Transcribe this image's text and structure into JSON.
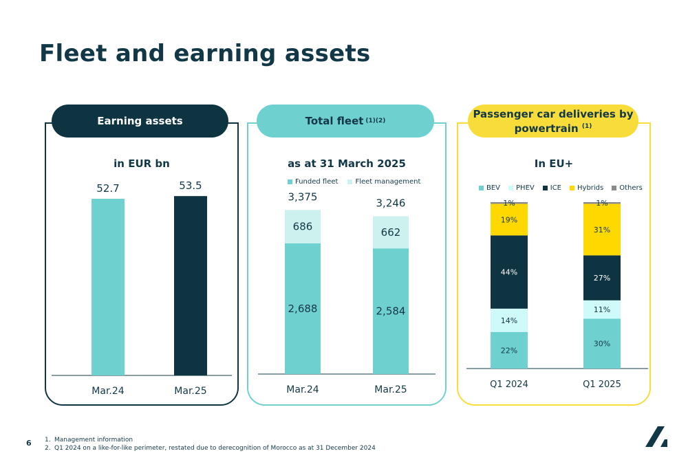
{
  "page": {
    "title": "Fleet and earning assets",
    "page_number": "6",
    "footnotes": [
      {
        "num": "1.",
        "text": "Management information"
      },
      {
        "num": "2.",
        "text": "Q1 2024 on a like-for-like perimeter, restated due to derecognition of Morocco as at 31 December 2024"
      }
    ]
  },
  "panels": {
    "earning": {
      "header": "Earning assets",
      "subtitle": "in EUR bn",
      "color": "#0e3442"
    },
    "fleet": {
      "header": "Total fleet",
      "header_sup": "(1)(2)",
      "subtitle": "as at 31 March 2025",
      "color": "#6fd1cf"
    },
    "deliveries": {
      "header_line1": "Passenger car deliveries by",
      "header_line2": "powertrain",
      "header_sup": "(1)",
      "subtitle": "In EU+",
      "color": "#f7dc3a"
    }
  },
  "chart_data": [
    {
      "type": "bar",
      "title": "in EUR bn",
      "categories": [
        "Mar.24",
        "Mar.25"
      ],
      "values": [
        52.7,
        53.5
      ],
      "value_labels": [
        "52.7",
        "53.5"
      ],
      "colors": [
        "#6fd1cf",
        "#0e3442"
      ],
      "ylim": [
        0,
        80
      ]
    },
    {
      "type": "bar",
      "stacked": true,
      "title": "as at 31 March 2025",
      "categories": [
        "Mar.24",
        "Mar.25"
      ],
      "series": [
        {
          "name": "Funded fleet",
          "values": [
            2688,
            2584
          ],
          "labels": [
            "2,688",
            "2,584"
          ],
          "color": "#6fd1cf"
        },
        {
          "name": "Fleet management",
          "values": [
            686,
            662
          ],
          "labels": [
            "686",
            "662"
          ],
          "color": "#cdf1ef"
        }
      ],
      "totals": [
        "3,375",
        "3,246"
      ],
      "ylim": [
        0,
        4100
      ]
    },
    {
      "type": "bar",
      "stacked": true,
      "title": "In EU+",
      "categories": [
        "Q1 2024",
        "Q1 2025"
      ],
      "series": [
        {
          "name": "BEV",
          "values": [
            22,
            30
          ],
          "labels": [
            "22%",
            "30%"
          ],
          "color": "#6fd1cf"
        },
        {
          "name": "PHEV",
          "values": [
            14,
            11
          ],
          "labels": [
            "14%",
            "11%"
          ],
          "color": "#cffafa"
        },
        {
          "name": "ICE",
          "values": [
            44,
            27
          ],
          "labels": [
            "44%",
            "27%"
          ],
          "color": "#0e3442"
        },
        {
          "name": "Hybrids",
          "values": [
            19,
            31
          ],
          "labels": [
            "19%",
            "31%"
          ],
          "color": "#ffd800"
        },
        {
          "name": "Others",
          "values": [
            1,
            1
          ],
          "labels": [
            "1%",
            "1%"
          ],
          "color": "#8a8a8a"
        }
      ],
      "ylim": [
        0,
        100
      ]
    }
  ]
}
